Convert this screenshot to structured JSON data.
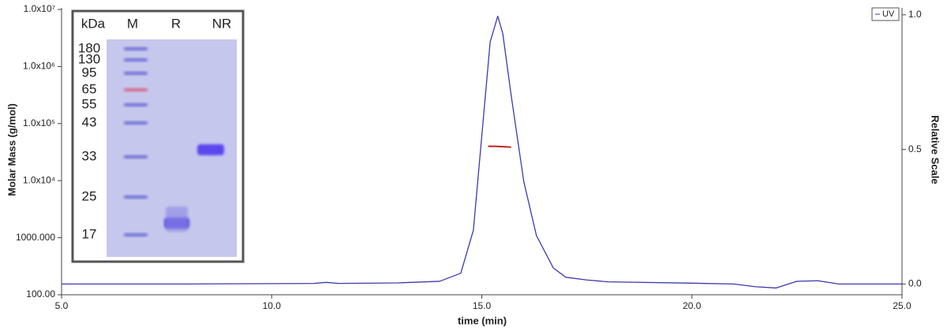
{
  "chart_data": {
    "type": "line",
    "x_label": "time (min)",
    "y_label": "Molar Mass (g/mol)",
    "y2_label": "Relative Scale",
    "xlim": [
      5,
      25
    ],
    "xticks": [
      {
        "value": 5,
        "label": "5.0"
      },
      {
        "value": 10,
        "label": "10.0"
      },
      {
        "value": 15,
        "label": "15.0"
      },
      {
        "value": 20,
        "label": "20.0"
      },
      {
        "value": 25,
        "label": "25.0"
      }
    ],
    "ylim": [
      100,
      10000000
    ],
    "ylog": true,
    "yticks": [
      {
        "value": 100,
        "label": "100.00"
      },
      {
        "value": 1000,
        "label": "1000.000"
      },
      {
        "value": 10000,
        "label": "1.0x10⁴"
      },
      {
        "value": 100000,
        "label": "1.0x10⁵"
      },
      {
        "value": 1000000,
        "label": "1.0x10⁶"
      },
      {
        "value": 10000000,
        "label": "1.0x10⁷"
      }
    ],
    "y2lim": [
      -0.04,
      1.02
    ],
    "y2ticks": [
      {
        "value": 0,
        "label": "0.0"
      },
      {
        "value": 0.5,
        "label": "0.5"
      },
      {
        "value": 1,
        "label": "1.0"
      }
    ],
    "legend": "top-right",
    "series": [
      {
        "name": "UV",
        "color": "#3a3aae",
        "axis": "y2",
        "legend": true,
        "x": [
          5,
          8,
          11,
          11.3,
          11.6,
          13,
          14,
          14.5,
          14.8,
          15.0,
          15.2,
          15.38,
          15.5,
          15.7,
          16.0,
          16.3,
          16.7,
          17.0,
          17.5,
          18,
          20,
          21,
          21.5,
          22,
          22.5,
          23,
          23.5,
          25
        ],
        "values": [
          0,
          0,
          0.002,
          0.006,
          0.002,
          0.004,
          0.01,
          0.04,
          0.2,
          0.55,
          0.9,
          0.995,
          0.93,
          0.7,
          0.38,
          0.18,
          0.06,
          0.025,
          0.015,
          0.008,
          0.003,
          0.0,
          -0.01,
          -0.015,
          0.01,
          0.012,
          0.0,
          0.0
        ]
      },
      {
        "name": "Molar Mass",
        "color": "#c82020",
        "axis": "y",
        "legend": false,
        "x": [
          15.15,
          15.3,
          15.45,
          15.6,
          15.7
        ],
        "values": [
          40000,
          40000,
          39500,
          39000,
          38500
        ]
      }
    ]
  },
  "gel_inset": {
    "header": [
      "kDa",
      "M",
      "R",
      "NR"
    ],
    "markers": [
      "180",
      "130",
      "95",
      "65",
      "55",
      "43",
      "33",
      "25",
      "17"
    ]
  }
}
